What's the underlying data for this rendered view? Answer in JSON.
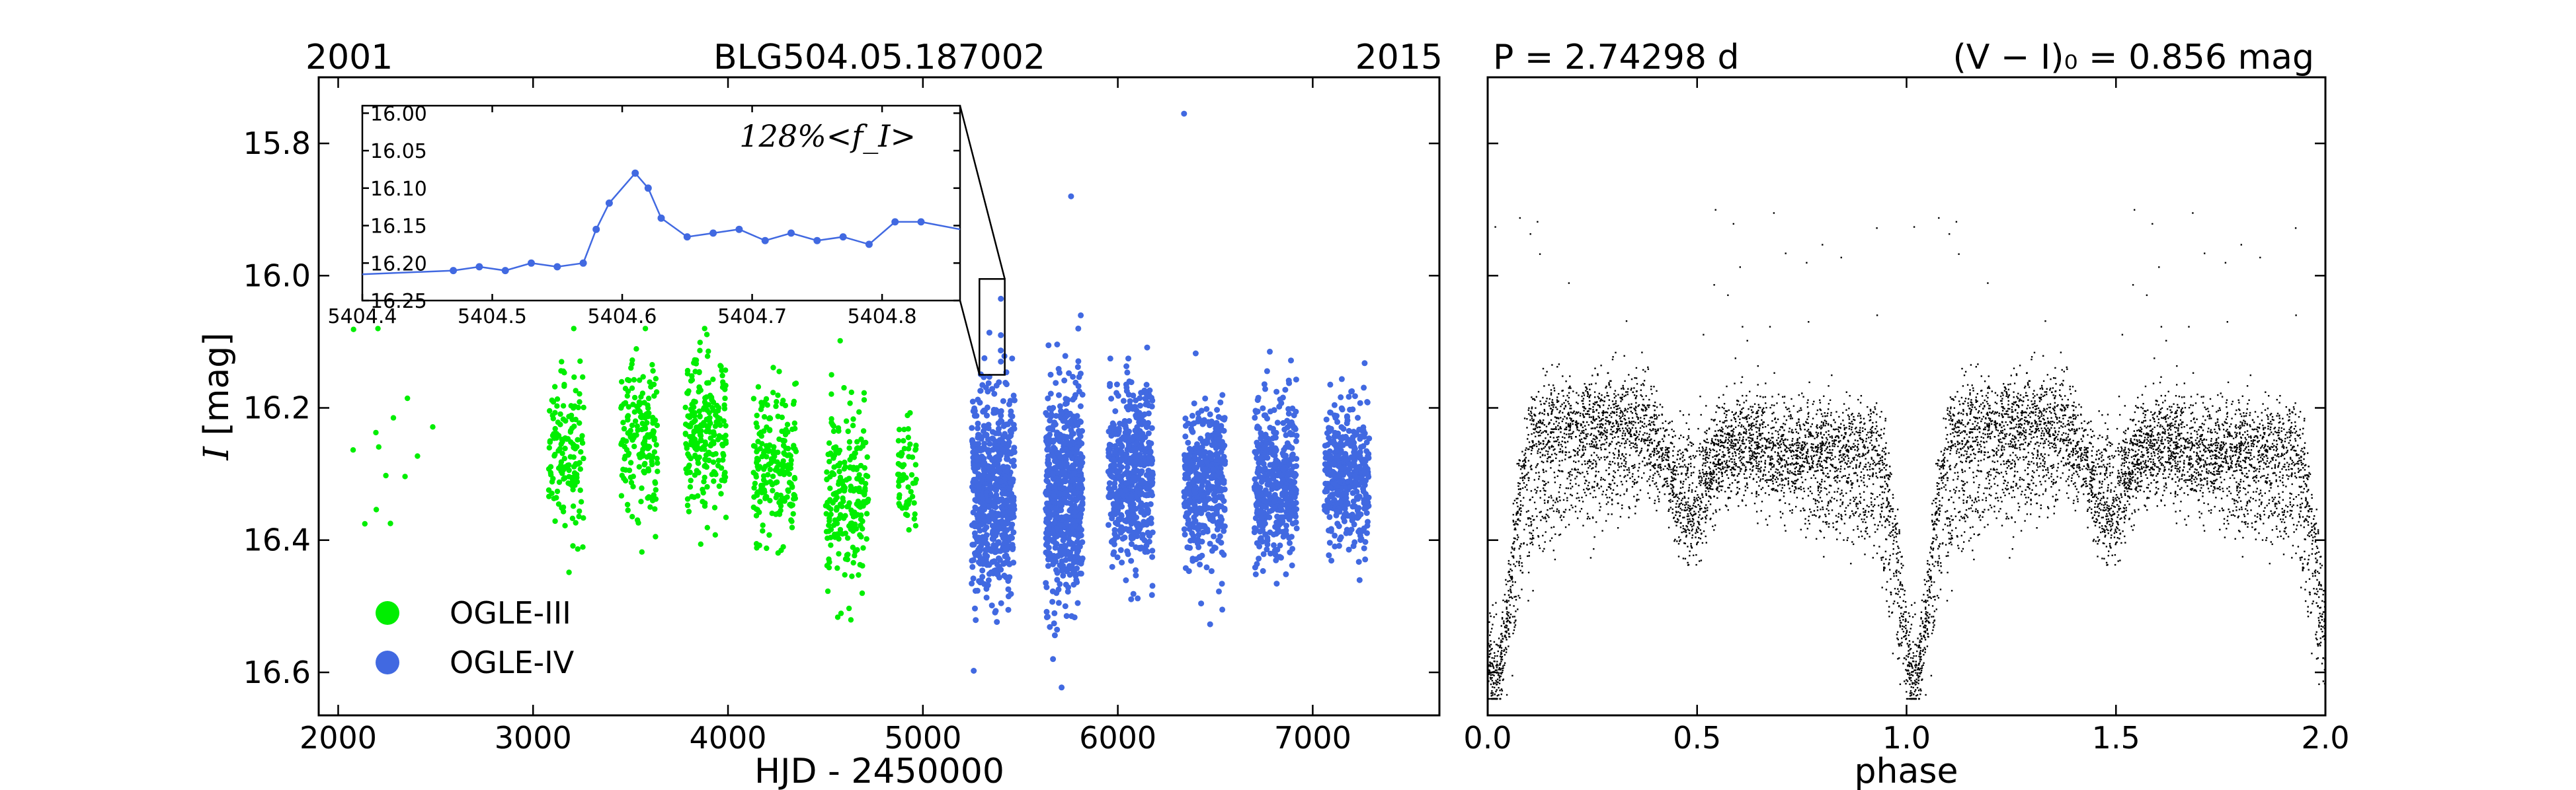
{
  "chart_data": [
    {
      "type": "scatter",
      "panel": "light-curve",
      "title": "BLG504.05.187002",
      "title_left": "2001",
      "title_right": "2015",
      "xlabel": "HJD - 2450000",
      "ylabel_italic": "I",
      "ylabel_rest": " [mag]",
      "xlim": [
        1900,
        7650
      ],
      "ylim": [
        16.665,
        15.7
      ],
      "y_inverted": true,
      "xticks": [
        "2000",
        "3000",
        "4000",
        "5000",
        "6000",
        "7000"
      ],
      "yticks": [
        "15.8",
        "16.0",
        "16.2",
        "16.4",
        "16.6"
      ],
      "legend_position": "lower-left",
      "series": [
        {
          "name": "OGLE-III",
          "color": "#00ee00",
          "seasons": [
            {
              "x": [
                2070,
                2500
              ],
              "mean": 16.28,
              "spread": 0.12,
              "n": 14
            },
            {
              "x": [
                3080,
                3260
              ],
              "mean": 16.27,
              "spread": 0.1,
              "n": 150
            },
            {
              "x": [
                3450,
                3640
              ],
              "mean": 16.25,
              "spread": 0.1,
              "n": 170
            },
            {
              "x": [
                3780,
                3990
              ],
              "mean": 16.24,
              "spread": 0.1,
              "n": 230
            },
            {
              "x": [
                4130,
                4350
              ],
              "mean": 16.29,
              "spread": 0.1,
              "n": 200
            },
            {
              "x": [
                4500,
                4720
              ],
              "mean": 16.33,
              "spread": 0.1,
              "n": 220
            },
            {
              "x": [
                4870,
                4970
              ],
              "mean": 16.3,
              "spread": 0.07,
              "n": 60
            }
          ]
        },
        {
          "name": "OGLE-IV",
          "color": "#4169e1",
          "seasons": [
            {
              "x": [
                5250,
                5470
              ],
              "mean": 16.33,
              "spread": 0.13,
              "n": 600
            },
            {
              "x": [
                5630,
                5820
              ],
              "mean": 16.33,
              "spread": 0.13,
              "n": 650
            },
            {
              "x": [
                5950,
                6180
              ],
              "mean": 16.3,
              "spread": 0.11,
              "n": 500
            },
            {
              "x": [
                6340,
                6550
              ],
              "mean": 16.31,
              "spread": 0.1,
              "n": 400
            },
            {
              "x": [
                6700,
                6920
              ],
              "mean": 16.31,
              "spread": 0.1,
              "n": 420
            },
            {
              "x": [
                7060,
                7290
              ],
              "mean": 16.3,
              "spread": 0.09,
              "n": 380
            }
          ],
          "outliers": [
            {
              "x": 6340,
              "y": 15.755
            },
            {
              "x": 5760,
              "y": 15.88
            },
            {
              "x": 5810,
              "y": 16.06
            },
            {
              "x": 6780,
              "y": 16.115
            },
            {
              "x": 5404.6,
              "y": 16.035
            },
            {
              "x": 5404.65,
              "y": 16.09
            },
            {
              "x": 5404.7,
              "y": 16.13
            }
          ]
        }
      ],
      "zoom_box": {
        "x": [
          5290,
          5420
        ],
        "y": [
          16.005,
          16.15
        ]
      },
      "inset": {
        "label": "128%<f_I>",
        "xlim": [
          5404.4,
          5404.86
        ],
        "ylim": [
          16.25,
          15.99
        ],
        "xticks": [
          "5404.4",
          "5404.5",
          "5404.6",
          "5404.7",
          "5404.8"
        ],
        "yticks": [
          "16.00",
          "16.05",
          "16.10",
          "16.15",
          "16.20",
          "16.25"
        ],
        "x": [
          5404.4,
          5404.47,
          5404.49,
          5404.51,
          5404.53,
          5404.55,
          5404.57,
          5404.58,
          5404.59,
          5404.61,
          5404.62,
          5404.63,
          5404.65,
          5404.67,
          5404.69,
          5404.71,
          5404.73,
          5404.75,
          5404.77,
          5404.79,
          5404.81,
          5404.83,
          5404.86
        ],
        "y": [
          16.215,
          16.21,
          16.205,
          16.21,
          16.2,
          16.205,
          16.2,
          16.155,
          16.12,
          16.08,
          16.1,
          16.14,
          16.165,
          16.16,
          16.155,
          16.17,
          16.16,
          16.17,
          16.165,
          16.175,
          16.145,
          16.145,
          16.155
        ]
      }
    },
    {
      "type": "scatter",
      "panel": "phase-folded",
      "period_label": "P = 2.74298 d",
      "color_label": "(V − I)₀ = 0.856 mag",
      "xlabel": "phase",
      "xlim": [
        0.0,
        2.0
      ],
      "ylim": [
        16.665,
        15.7
      ],
      "xticks": [
        "0.0",
        "0.5",
        "1.0",
        "1.5",
        "2.0"
      ],
      "color": "#000000",
      "n_points_per_cycle": 4500
    }
  ],
  "legend": {
    "items": [
      {
        "label": "OGLE-III",
        "color": "#00ee00"
      },
      {
        "label": "OGLE-IV",
        "color": "#4169e1"
      }
    ]
  }
}
